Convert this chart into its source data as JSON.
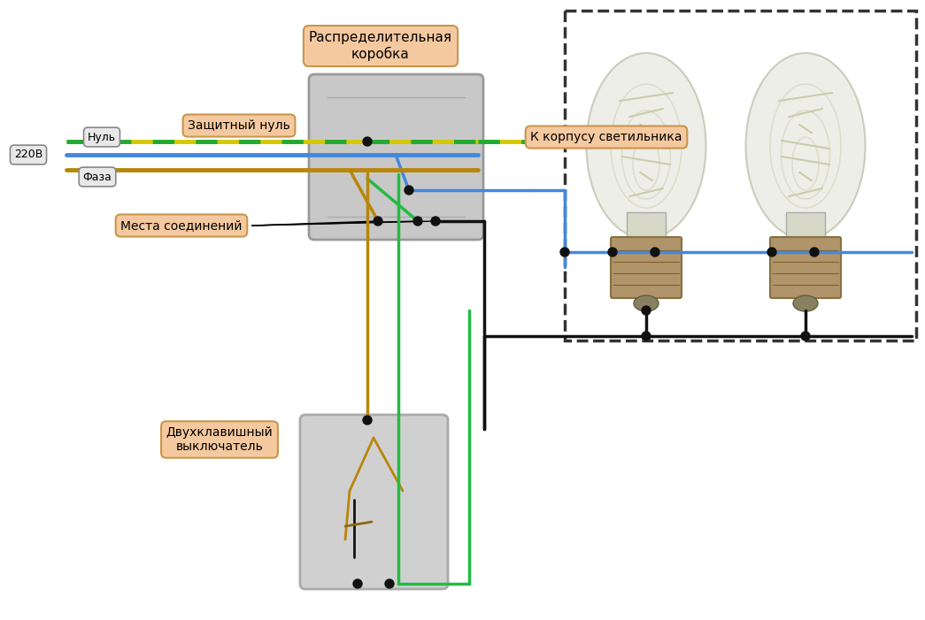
{
  "bg_color": "#ffffff",
  "label_box_color": "#f5c9a0",
  "label_box_edge": "#c8964a",
  "small_box_color": "#e8e8e8",
  "small_box_edge": "#888888",
  "wire_blue": "#4488dd",
  "wire_yg_yellow": "#d4c800",
  "wire_yg_green": "#22aa33",
  "wire_gold": "#b8860b",
  "wire_black": "#111111",
  "wire_green": "#22bb44",
  "junction_color": "#111111",
  "db_fill": "#c8c8c8",
  "db_edge": "#999999",
  "sw_fill": "#d0d0d0",
  "sw_edge": "#aaaaaa",
  "dashed_box_color": "#333333",
  "labels": {
    "null": "Нуль",
    "220v": "220В",
    "phase": "Фаза",
    "protective_null": "Защитный нуль",
    "junction_points": "Места соединений",
    "distribution_box": "Распределительная\nкоробка",
    "to_housing": "К корпусу светильника",
    "double_switch": "Двухклавишный\nвыключатель"
  }
}
